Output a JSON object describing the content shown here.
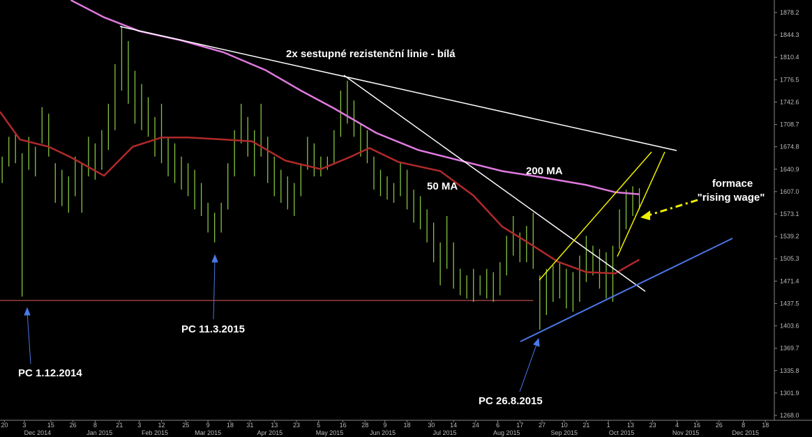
{
  "chart_data": {
    "type": "hilo",
    "xlim": [
      0,
      350
    ],
    "ylim": [
      1260.6,
      1897.2
    ],
    "yticks": [
      1878.2,
      1844.3,
      1810.4,
      1776.5,
      1742.6,
      1708.7,
      1674.8,
      1640.9,
      {
        "value": 1607.0,
        "label": "1607.0"
      },
      1573.1,
      1539.2,
      1505.3,
      1471.4,
      1437.5,
      1403.6,
      1369.7,
      1335.8,
      1301.9,
      {
        "value": 1268.0,
        "label": "1268.0"
      }
    ],
    "xticks": [
      {
        "value": 2,
        "label": "20"
      },
      {
        "value": 11,
        "label": "3"
      },
      {
        "value": 23,
        "label": "15"
      },
      {
        "value": 33,
        "label": "26"
      },
      {
        "value": 43,
        "label": "8"
      },
      {
        "value": 54,
        "label": "21"
      },
      {
        "value": 63,
        "label": "3"
      },
      {
        "value": 73,
        "label": "12"
      },
      {
        "value": 84,
        "label": "25"
      },
      {
        "value": 94,
        "label": "9"
      },
      {
        "value": 104,
        "label": "18"
      },
      {
        "value": 113,
        "label": "31"
      },
      {
        "value": 124,
        "label": "13"
      },
      {
        "value": 134,
        "label": "23"
      },
      {
        "value": 144,
        "label": "5"
      },
      {
        "value": 155,
        "label": "16"
      },
      {
        "value": 165,
        "label": "28"
      },
      {
        "value": 174,
        "label": "9"
      },
      {
        "value": 184,
        "label": "18"
      },
      {
        "value": 195,
        "label": "30"
      },
      {
        "value": 205,
        "label": "14"
      },
      {
        "value": 215,
        "label": "24"
      },
      {
        "value": 225,
        "label": "6"
      },
      {
        "value": 235,
        "label": "17"
      },
      {
        "value": 245,
        "label": "27"
      },
      {
        "value": 255,
        "label": "10"
      },
      {
        "value": 265,
        "label": "21"
      },
      {
        "value": 275,
        "label": "1"
      },
      {
        "value": 285,
        "label": "13"
      },
      {
        "value": 295,
        "label": "23"
      },
      {
        "value": 306,
        "label": "4"
      },
      {
        "value": 315,
        "label": "16"
      },
      {
        "value": 325,
        "label": "26"
      },
      {
        "value": 336,
        "label": "8"
      },
      {
        "value": 346,
        "label": "18"
      }
    ],
    "month_labels": [
      {
        "value": 17,
        "label": "Dec 2014"
      },
      {
        "value": 45,
        "label": "Jan 2015"
      },
      {
        "value": 70,
        "label": "Feb 2015"
      },
      {
        "value": 94,
        "label": "Mar 2015"
      },
      {
        "value": 122,
        "label": "Apr 2015"
      },
      {
        "value": 149,
        "label": "May 2015"
      },
      {
        "value": 173,
        "label": "Jun 2015"
      },
      {
        "value": 201,
        "label": "Jul 2015"
      },
      {
        "value": 229,
        "label": "Aug 2015"
      },
      {
        "value": 255,
        "label": "Sep 2015"
      },
      {
        "value": 281,
        "label": "Oct 2015"
      },
      {
        "value": 310,
        "label": "Nov 2015"
      },
      {
        "value": 337,
        "label": "Dec 2015"
      }
    ],
    "color": "#86c440",
    "x": [
      1,
      4,
      7,
      10,
      13,
      16,
      19,
      22,
      25,
      28,
      31,
      34,
      37,
      40,
      43,
      46,
      49,
      52,
      55,
      58,
      61,
      64,
      67,
      70,
      73,
      76,
      79,
      82,
      85,
      88,
      91,
      94,
      97,
      100,
      103,
      106,
      109,
      112,
      115,
      118,
      121,
      124,
      127,
      130,
      133,
      136,
      139,
      142,
      145,
      148,
      151,
      154,
      157,
      160,
      163,
      166,
      169,
      172,
      175,
      178,
      181,
      184,
      187,
      190,
      193,
      196,
      199,
      202,
      205,
      208,
      211,
      214,
      217,
      220,
      223,
      226,
      229,
      232,
      235,
      238,
      241,
      244,
      247,
      250,
      253,
      256,
      259,
      262,
      265,
      268,
      271,
      274,
      277,
      280,
      283,
      286,
      289
    ],
    "high": [
      1660,
      1690,
      1695,
      1665,
      1690,
      1675,
      1735,
      1725,
      1650,
      1640,
      1630,
      1660,
      1650,
      1690,
      1680,
      1700,
      1740,
      1800,
      1858,
      1835,
      1790,
      1770,
      1750,
      1720,
      1740,
      1690,
      1680,
      1660,
      1650,
      1640,
      1620,
      1590,
      1575,
      1590,
      1650,
      1700,
      1740,
      1720,
      1700,
      1740,
      1690,
      1660,
      1640,
      1630,
      1620,
      1650,
      1690,
      1680,
      1660,
      1660,
      1700,
      1760,
      1775,
      1745,
      1710,
      1700,
      1660,
      1640,
      1630,
      1620,
      1650,
      1640,
      1610,
      1600,
      1580,
      1560,
      1530,
      1570,
      1530,
      1490,
      1480,
      1490,
      1480,
      1490,
      1485,
      1500,
      1540,
      1570,
      1545,
      1555,
      1575,
      1480,
      1490,
      1495,
      1500,
      1490,
      1485,
      1510,
      1540,
      1525,
      1520,
      1515,
      1525,
      1580,
      1610,
      1615,
      1612
    ],
    "low": [
      1620,
      1645,
      1650,
      1448,
      1640,
      1630,
      1680,
      1660,
      1590,
      1585,
      1575,
      1600,
      1575,
      1630,
      1625,
      1640,
      1670,
      1700,
      1760,
      1740,
      1710,
      1700,
      1690,
      1660,
      1650,
      1630,
      1620,
      1610,
      1600,
      1580,
      1570,
      1545,
      1530,
      1545,
      1580,
      1630,
      1680,
      1660,
      1630,
      1660,
      1620,
      1600,
      1590,
      1580,
      1570,
      1600,
      1640,
      1630,
      1630,
      1640,
      1650,
      1690,
      1710,
      1690,
      1660,
      1650,
      1610,
      1600,
      1595,
      1590,
      1600,
      1580,
      1560,
      1550,
      1530,
      1500,
      1465,
      1490,
      1460,
      1450,
      1445,
      1440,
      1450,
      1445,
      1440,
      1450,
      1480,
      1510,
      1500,
      1500,
      1490,
      1398,
      1420,
      1440,
      1445,
      1430,
      1425,
      1440,
      1470,
      1480,
      1460,
      1445,
      1440,
      1520,
      1550,
      1570,
      1580
    ],
    "lines": [
      {
        "color": "#b02a2a",
        "x": [
          0,
          9,
          22,
          32,
          47,
          60,
          73,
          85,
          101,
          114,
          129,
          145,
          158,
          167,
          180,
          199,
          214,
          227,
          240,
          252,
          265,
          278,
          289
        ],
        "values": [
          1728,
          1686,
          1675,
          1659,
          1631,
          1675,
          1689,
          1689,
          1686,
          1683,
          1654,
          1641,
          1659,
          1673,
          1652,
          1638,
          1601,
          1554,
          1527,
          1501,
          1485,
          1483,
          1504
        ]
      },
      {
        "color": "#e07ae0",
        "x": [
          32,
          47,
          63,
          82,
          101,
          120,
          136,
          151,
          170,
          189,
          208,
          227,
          246,
          265,
          278,
          289
        ],
        "values": [
          1897,
          1871,
          1850,
          1836,
          1818,
          1791,
          1760,
          1733,
          1696,
          1670,
          1654,
          1638,
          1628,
          1617,
          1606,
          1603
        ]
      }
    ],
    "hline": {
      "color": "#e06060",
      "value": 1442,
      "x": [
        0,
        241
      ]
    },
    "annotations": [
      "2x sestupné rezistenční linie - bílá",
      "200 MA",
      "50 MA",
      "formace",
      "\"rising wage\"",
      "PC 1.12.2014",
      "PC 11.3.2015",
      "PC 26.8.2015"
    ]
  }
}
